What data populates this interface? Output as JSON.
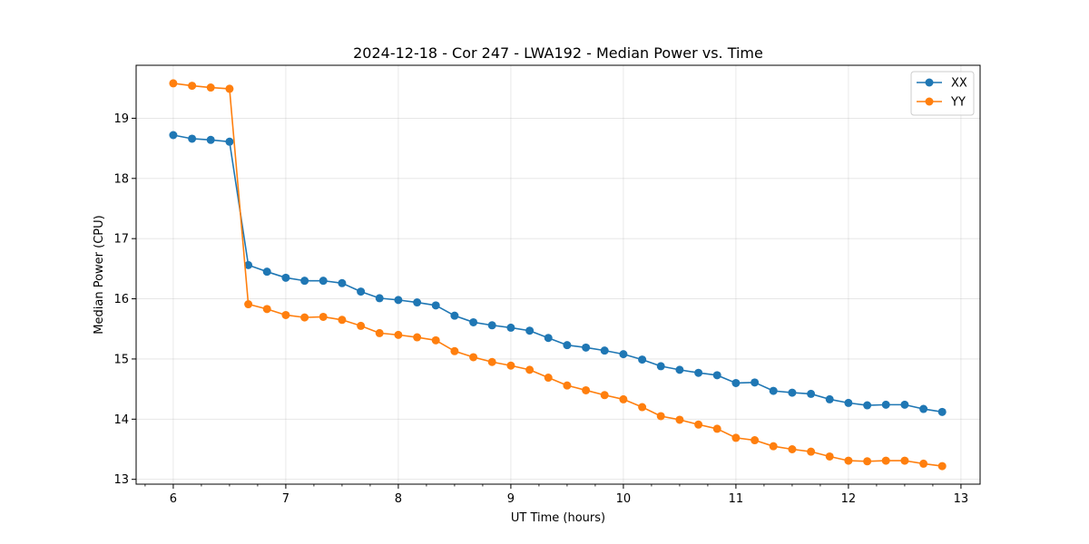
{
  "chart_data": {
    "type": "line",
    "title": "2024-12-18 - Cor 247 - LWA192 - Median Power vs. Time",
    "xlabel": "UT Time (hours)",
    "ylabel": "Median Power (CPU)",
    "xlim": [
      5.67,
      13.17
    ],
    "ylim": [
      12.92,
      19.88
    ],
    "xticks": [
      6,
      7,
      8,
      9,
      10,
      11,
      12,
      13
    ],
    "yticks": [
      13,
      14,
      15,
      16,
      17,
      18,
      19
    ],
    "grid": true,
    "legend_position": "top-right",
    "x": [
      6.0,
      6.167,
      6.333,
      6.5,
      6.667,
      6.833,
      7.0,
      7.167,
      7.333,
      7.5,
      7.667,
      7.833,
      8.0,
      8.167,
      8.333,
      8.5,
      8.667,
      8.833,
      9.0,
      9.167,
      9.333,
      9.5,
      9.667,
      9.833,
      10.0,
      10.167,
      10.333,
      10.5,
      10.667,
      10.833,
      11.0,
      11.167,
      11.333,
      11.5,
      11.667,
      11.833,
      12.0,
      12.167,
      12.333,
      12.5,
      12.667,
      12.833
    ],
    "series": [
      {
        "name": "XX",
        "color": "#1f77b4",
        "values": [
          18.72,
          18.66,
          18.64,
          18.61,
          16.56,
          16.45,
          16.35,
          16.3,
          16.3,
          16.26,
          16.12,
          16.01,
          15.98,
          15.94,
          15.89,
          15.72,
          15.61,
          15.56,
          15.52,
          15.47,
          15.35,
          15.23,
          15.19,
          15.14,
          15.08,
          14.99,
          14.88,
          14.82,
          14.77,
          14.73,
          14.6,
          14.61,
          14.47,
          14.44,
          14.42,
          14.33,
          14.27,
          14.23,
          14.24,
          14.24,
          14.17,
          14.12
        ]
      },
      {
        "name": "YY",
        "color": "#ff7f0e",
        "values": [
          19.58,
          19.54,
          19.51,
          19.49,
          15.91,
          15.83,
          15.73,
          15.69,
          15.7,
          15.65,
          15.55,
          15.43,
          15.4,
          15.36,
          15.31,
          15.13,
          15.03,
          14.95,
          14.89,
          14.82,
          14.69,
          14.56,
          14.48,
          14.4,
          14.33,
          14.2,
          14.05,
          13.99,
          13.91,
          13.84,
          13.69,
          13.65,
          13.55,
          13.5,
          13.46,
          13.38,
          13.31,
          13.3,
          13.31,
          13.31,
          13.26,
          13.22
        ]
      }
    ]
  }
}
